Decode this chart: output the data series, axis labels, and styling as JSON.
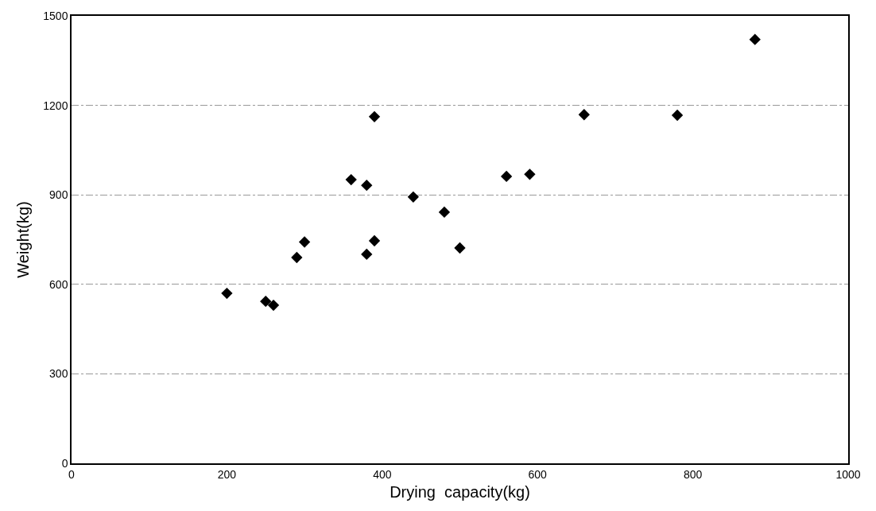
{
  "chart_data": {
    "type": "scatter",
    "xlabel": "Drying  capacity(kg)",
    "ylabel": "Weight(kg)",
    "x": [
      200,
      250,
      260,
      290,
      300,
      360,
      380,
      390,
      380,
      390,
      440,
      480,
      500,
      560,
      590,
      660,
      780,
      880
    ],
    "values": [
      570,
      543,
      530,
      690,
      742,
      951,
      932,
      1162,
      701,
      746,
      893,
      842,
      722,
      962,
      969,
      1169,
      1167,
      1421
    ],
    "color": "#000000",
    "marker": "diamond",
    "xlim": [
      0,
      1000
    ],
    "xticks": [
      0,
      200,
      400,
      600,
      800,
      1000
    ],
    "ylim": [
      0,
      1500
    ],
    "yticks": [
      0,
      300,
      600,
      900,
      1200,
      1500
    ],
    "grid": "y"
  }
}
